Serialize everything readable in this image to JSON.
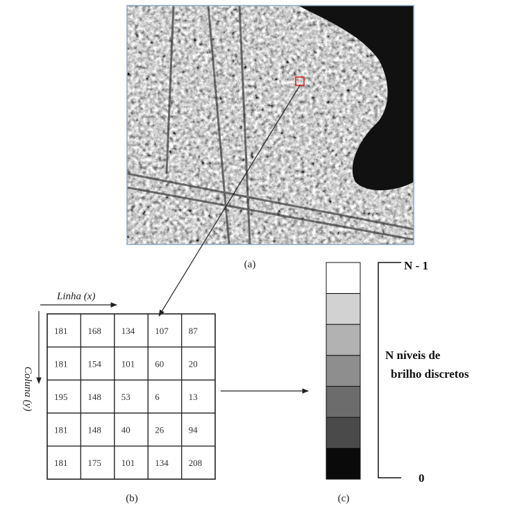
{
  "image_caption": "(a)",
  "grid": {
    "row_label": "Linha (x)",
    "column_label": "Coluna (y)",
    "caption": "(b)",
    "rows": [
      [
        181,
        168,
        134,
        107,
        87
      ],
      [
        181,
        154,
        101,
        60,
        20
      ],
      [
        195,
        148,
        53,
        6,
        13
      ],
      [
        181,
        148,
        40,
        26,
        94
      ],
      [
        181,
        175,
        101,
        134,
        208
      ]
    ]
  },
  "scale": {
    "caption": "(c)",
    "top_label": "N - 1",
    "bottom_label": "0",
    "description": [
      "N níveis de",
      "brilho discretos"
    ]
  }
}
